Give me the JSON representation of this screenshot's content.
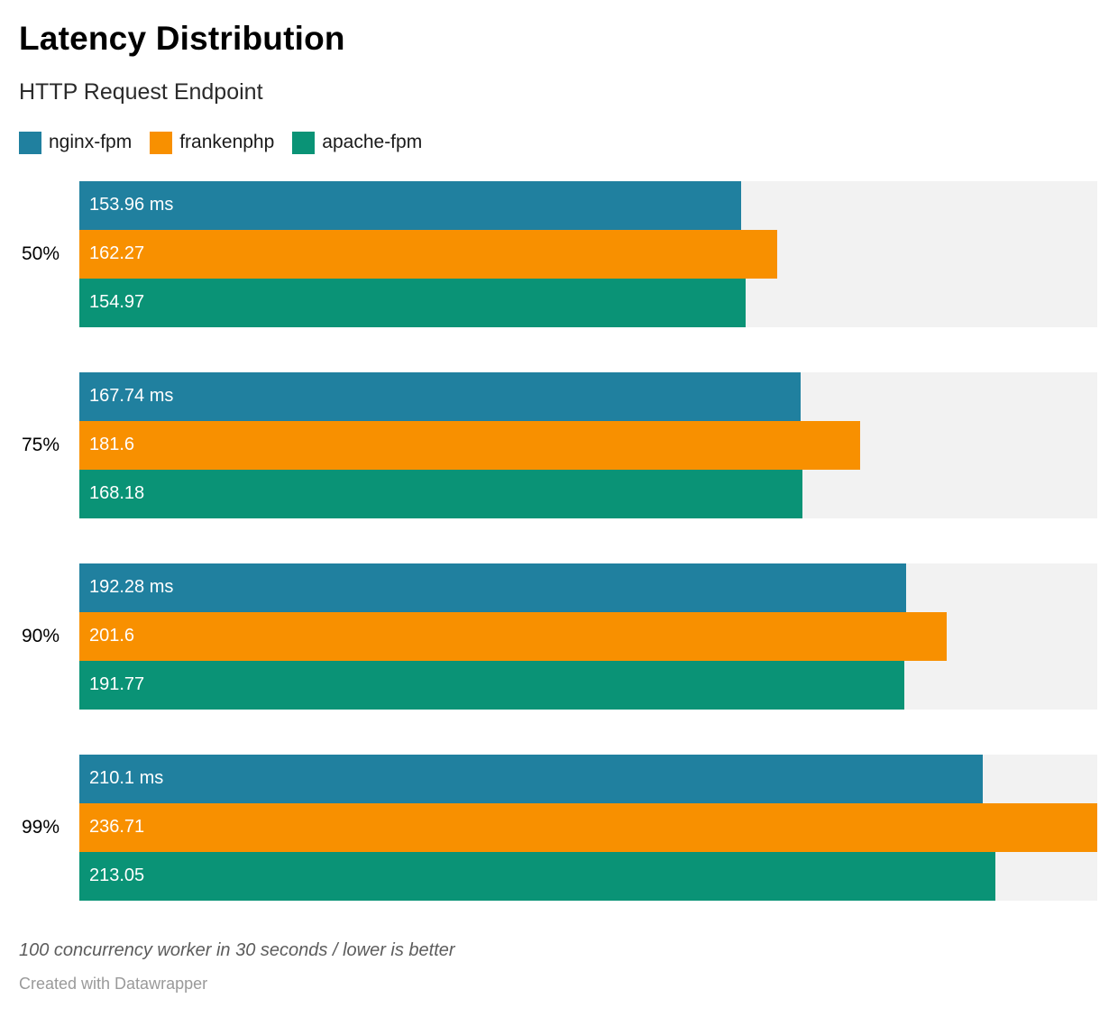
{
  "header": {
    "title": "Latency Distribution",
    "subtitle": "HTTP Request Endpoint"
  },
  "legend": [
    {
      "label": "nginx-fpm",
      "color": "#20809f"
    },
    {
      "label": "frankenphp",
      "color": "#f89000"
    },
    {
      "label": "apache-fpm",
      "color": "#0a9376"
    }
  ],
  "footer": {
    "note": "100 concurrency worker in 30 seconds / lower is better",
    "credit": "Created with Datawrapper"
  },
  "chart_data": {
    "type": "bar",
    "orientation": "horizontal",
    "title": "Latency Distribution",
    "subtitle": "HTTP Request Endpoint",
    "unit": "ms",
    "categories": [
      "50%",
      "75%",
      "90%",
      "99%"
    ],
    "series": [
      {
        "name": "nginx-fpm",
        "color": "#20809f",
        "values": [
          153.96,
          167.74,
          192.28,
          210.1
        ],
        "labels": [
          "153.96 ms",
          "167.74 ms",
          "192.28 ms",
          "210.1 ms"
        ]
      },
      {
        "name": "frankenphp",
        "color": "#f89000",
        "values": [
          162.27,
          181.6,
          201.6,
          236.71
        ],
        "labels": [
          "162.27",
          "181.6",
          "201.6",
          "236.71"
        ]
      },
      {
        "name": "apache-fpm",
        "color": "#0a9376",
        "values": [
          154.97,
          168.18,
          191.77,
          213.05
        ],
        "labels": [
          "154.97",
          "168.18",
          "191.77",
          "213.05"
        ]
      }
    ],
    "xmax": 236.71,
    "track_color": "#f2f2f2",
    "value_labels": "inside-start",
    "legend_position": "top",
    "grid": false
  }
}
